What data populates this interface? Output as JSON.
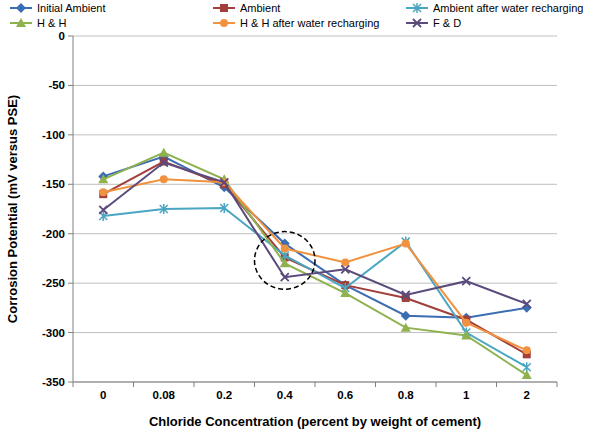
{
  "chart_data": {
    "type": "line",
    "x_label": "Chloride Concentration (percent by weight of cement)",
    "y_label": "Corrosion Potential (mV versus PSE)",
    "categories": [
      "0",
      "0.08",
      "0.2",
      "0.4",
      "0.6",
      "0.8",
      "1",
      "2"
    ],
    "series": [
      {
        "name": "Initial Ambient",
        "color": "#3b6db3",
        "marker": "diamond",
        "line_style": "solid",
        "values": [
          -142,
          -122,
          -153,
          -210,
          -252,
          -283,
          -285,
          -275
        ]
      },
      {
        "name": "Ambient",
        "color": "#a23f3a",
        "marker": "square",
        "line_style": "solid",
        "values": [
          -160,
          -127,
          -150,
          -224,
          -252,
          -265,
          -287,
          -322
        ]
      },
      {
        "name": "Ambient after water recharging",
        "color": "#4aa6c2",
        "marker": "asterisk",
        "line_style": "solid",
        "values": [
          -182,
          -175,
          -174,
          -222,
          -255,
          -208,
          -300,
          -335
        ]
      },
      {
        "name": "H & H",
        "color": "#8fb24f",
        "marker": "triangle",
        "line_style": "solid",
        "values": [
          -145,
          -118,
          -145,
          -230,
          -260,
          -295,
          -303,
          -343
        ]
      },
      {
        "name": "H & H after water recharging",
        "color": "#f0923f",
        "marker": "circle",
        "line_style": "solid",
        "values": [
          -158,
          -145,
          -148,
          -215,
          -229,
          -210,
          -290,
          -318
        ]
      },
      {
        "name": "F & D",
        "color": "#5b4a7c",
        "marker": "x",
        "line_style": "solid",
        "values": [
          -176,
          -128,
          -148,
          -244,
          -236,
          -262,
          -248,
          -271
        ]
      }
    ],
    "ylim": [
      -350,
      0
    ],
    "yticks": [
      0,
      -50,
      -100,
      -150,
      -200,
      -250,
      -300,
      -350
    ],
    "grid": true,
    "legend": "top"
  }
}
